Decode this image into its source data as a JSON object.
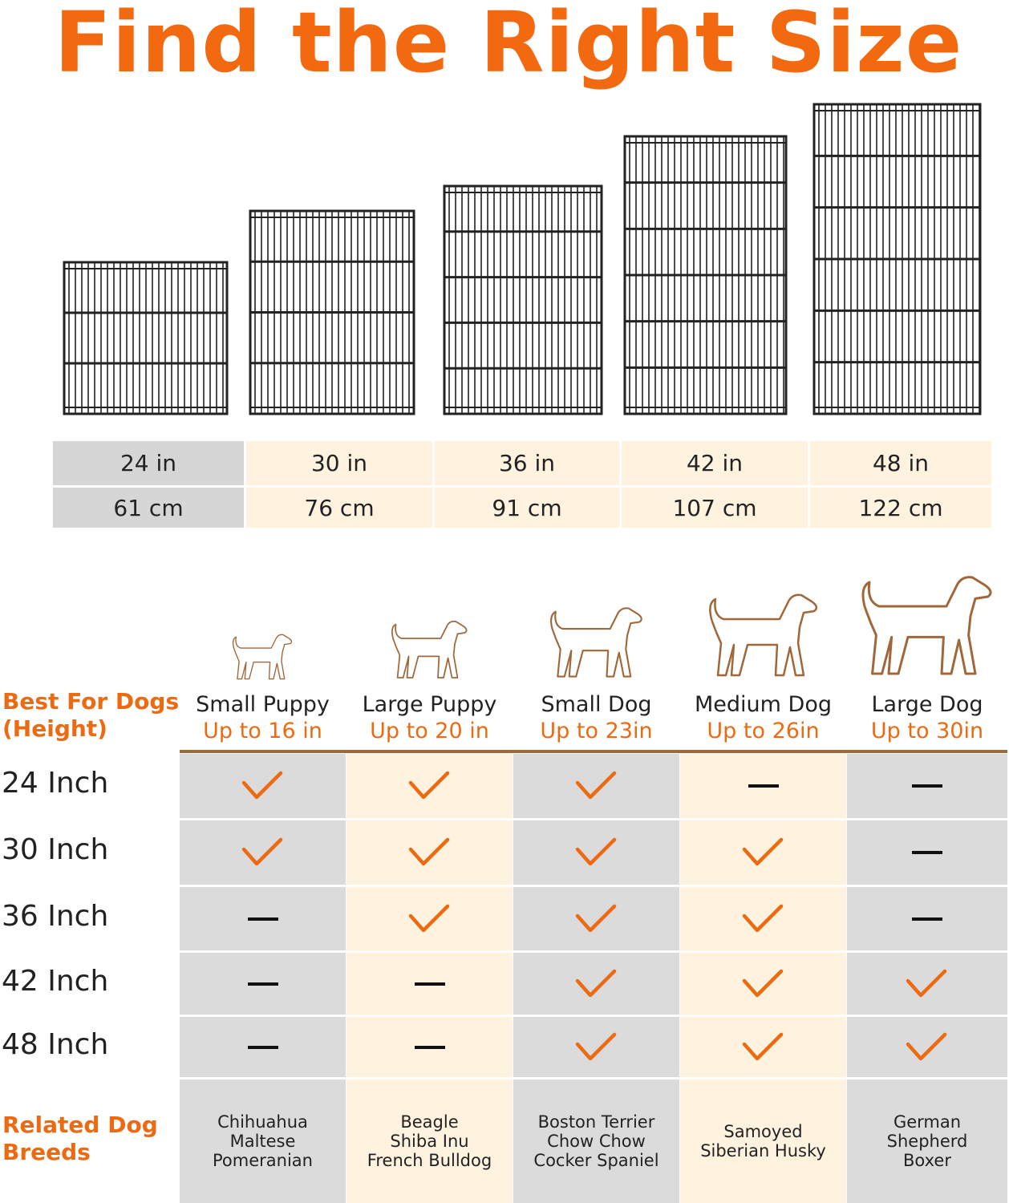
{
  "title": "Find the Right Size",
  "colors": {
    "accent": "#ec6a12",
    "gray": "#dbdbdb",
    "cream": "#fff3e0",
    "brown": "#a0683a"
  },
  "sizes": [
    {
      "in": "24 in",
      "cm": "61 cm"
    },
    {
      "in": "30 in",
      "cm": "76 cm"
    },
    {
      "in": "36 in",
      "cm": "91 cm"
    },
    {
      "in": "42 in",
      "cm": "107 cm"
    },
    {
      "in": "48 in",
      "cm": "122 cm"
    }
  ],
  "best_for_label_1": "Best For Dogs",
  "best_for_label_2": "(Height)",
  "dogs": [
    {
      "name": "Small Puppy",
      "height": "Up to 16 in"
    },
    {
      "name": "Large Puppy",
      "height": "Up to 20 in"
    },
    {
      "name": "Small Dog",
      "height": "Up to 23in"
    },
    {
      "name": "Medium Dog",
      "height": "Up to 26in"
    },
    {
      "name": "Large Dog",
      "height": "Up to 30in"
    }
  ],
  "rows": [
    {
      "label": "24 Inch",
      "fit": [
        true,
        true,
        true,
        false,
        false
      ]
    },
    {
      "label": "30 Inch",
      "fit": [
        true,
        true,
        true,
        true,
        false
      ]
    },
    {
      "label": "36 Inch",
      "fit": [
        false,
        true,
        true,
        true,
        false
      ]
    },
    {
      "label": "42 Inch",
      "fit": [
        false,
        false,
        true,
        true,
        true
      ]
    },
    {
      "label": "48 Inch",
      "fit": [
        false,
        false,
        true,
        true,
        true
      ]
    }
  ],
  "breeds_label_1": "Related Dog",
  "breeds_label_2": "Breeds",
  "breeds": [
    [
      "Chihuahua",
      "Maltese",
      "Pomeranian"
    ],
    [
      "Beagle",
      "Shiba Inu",
      "French Bulldog"
    ],
    [
      "Boston Terrier",
      "Chow Chow",
      "Cocker Spaniel"
    ],
    [
      "Samoyed",
      "Siberian Husky"
    ],
    [
      "German",
      "Shepherd",
      "Boxer"
    ]
  ]
}
